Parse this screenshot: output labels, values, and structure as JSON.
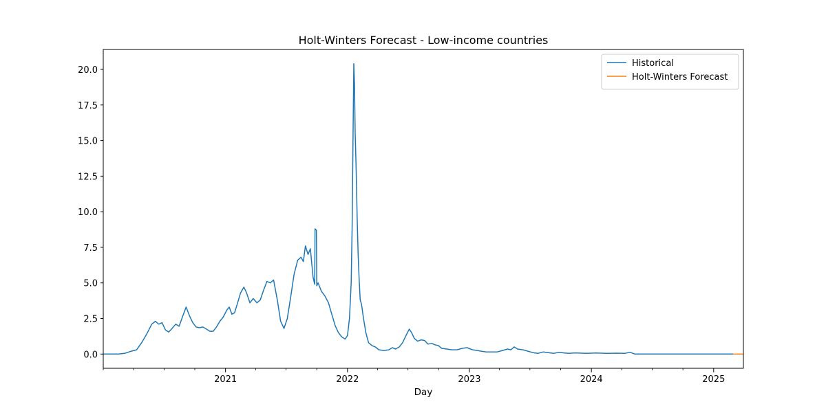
{
  "chart_data": {
    "type": "line",
    "title": "Holt-Winters Forecast - Low-income countries",
    "xlabel": "Day",
    "ylabel": "",
    "x_ticks": [
      "2021",
      "2022",
      "2023",
      "2024",
      "2025"
    ],
    "y_ticks": [
      "0.0",
      "2.5",
      "5.0",
      "7.5",
      "10.0",
      "12.5",
      "15.0",
      "17.5",
      "20.0"
    ],
    "xlim": [
      "2020-01-01",
      "2025-03-31"
    ],
    "ylim": [
      -1.0,
      21.4
    ],
    "legend_position": "top-right",
    "grid": false,
    "series": [
      {
        "name": "Historical",
        "color": "#1f77b4",
        "points": [
          [
            "2020-01-01",
            0.0
          ],
          [
            "2020-02-15",
            0.0
          ],
          [
            "2020-03-05",
            0.05
          ],
          [
            "2020-03-25",
            0.2
          ],
          [
            "2020-04-10",
            0.3
          ],
          [
            "2020-04-25",
            0.8
          ],
          [
            "2020-05-10",
            1.4
          ],
          [
            "2020-05-25",
            2.1
          ],
          [
            "2020-06-05",
            2.3
          ],
          [
            "2020-06-15",
            2.1
          ],
          [
            "2020-06-25",
            2.2
          ],
          [
            "2020-07-05",
            1.7
          ],
          [
            "2020-07-15",
            1.55
          ],
          [
            "2020-07-25",
            1.8
          ],
          [
            "2020-08-05",
            2.1
          ],
          [
            "2020-08-15",
            1.95
          ],
          [
            "2020-08-25",
            2.6
          ],
          [
            "2020-09-05",
            3.3
          ],
          [
            "2020-09-15",
            2.7
          ],
          [
            "2020-09-25",
            2.2
          ],
          [
            "2020-10-05",
            1.9
          ],
          [
            "2020-10-15",
            1.85
          ],
          [
            "2020-10-25",
            1.9
          ],
          [
            "2020-11-05",
            1.75
          ],
          [
            "2020-11-15",
            1.6
          ],
          [
            "2020-11-25",
            1.6
          ],
          [
            "2020-12-05",
            1.9
          ],
          [
            "2020-12-15",
            2.3
          ],
          [
            "2020-12-25",
            2.6
          ],
          [
            "2021-01-05",
            3.1
          ],
          [
            "2021-01-12",
            3.3
          ],
          [
            "2021-01-20",
            2.8
          ],
          [
            "2021-01-28",
            2.9
          ],
          [
            "2021-02-05",
            3.5
          ],
          [
            "2021-02-15",
            4.3
          ],
          [
            "2021-02-25",
            4.7
          ],
          [
            "2021-03-05",
            4.3
          ],
          [
            "2021-03-15",
            3.6
          ],
          [
            "2021-03-25",
            3.9
          ],
          [
            "2021-04-05",
            3.6
          ],
          [
            "2021-04-15",
            3.8
          ],
          [
            "2021-04-25",
            4.5
          ],
          [
            "2021-05-05",
            5.1
          ],
          [
            "2021-05-15",
            5.0
          ],
          [
            "2021-05-25",
            5.2
          ],
          [
            "2021-06-05",
            3.8
          ],
          [
            "2021-06-15",
            2.3
          ],
          [
            "2021-06-25",
            1.8
          ],
          [
            "2021-07-05",
            2.5
          ],
          [
            "2021-07-15",
            4.0
          ],
          [
            "2021-07-25",
            5.6
          ],
          [
            "2021-08-05",
            6.6
          ],
          [
            "2021-08-15",
            6.8
          ],
          [
            "2021-08-22",
            6.5
          ],
          [
            "2021-08-28",
            7.6
          ],
          [
            "2021-09-05",
            7.0
          ],
          [
            "2021-09-12",
            7.4
          ],
          [
            "2021-09-20",
            5.4
          ],
          [
            "2021-09-25",
            4.9
          ],
          [
            "2021-09-26",
            8.8
          ],
          [
            "2021-09-30",
            8.7
          ],
          [
            "2021-10-01",
            4.8
          ],
          [
            "2021-10-05",
            5.0
          ],
          [
            "2021-10-15",
            4.4
          ],
          [
            "2021-10-25",
            4.1
          ],
          [
            "2021-11-05",
            3.6
          ],
          [
            "2021-11-15",
            2.8
          ],
          [
            "2021-11-25",
            2.0
          ],
          [
            "2021-12-05",
            1.5
          ],
          [
            "2021-12-15",
            1.2
          ],
          [
            "2021-12-25",
            1.05
          ],
          [
            "2022-01-01",
            1.3
          ],
          [
            "2022-01-07",
            2.5
          ],
          [
            "2022-01-12",
            5.0
          ],
          [
            "2022-01-15",
            9.0
          ],
          [
            "2022-01-17",
            14.0
          ],
          [
            "2022-01-19",
            18.5
          ],
          [
            "2022-01-20",
            20.4
          ],
          [
            "2022-01-22",
            19.0
          ],
          [
            "2022-01-24",
            15.5
          ],
          [
            "2022-01-27",
            13.0
          ],
          [
            "2022-01-30",
            9.5
          ],
          [
            "2022-02-02",
            7.0
          ],
          [
            "2022-02-05",
            5.2
          ],
          [
            "2022-02-08",
            3.8
          ],
          [
            "2022-02-12",
            3.5
          ],
          [
            "2022-02-18",
            2.5
          ],
          [
            "2022-02-25",
            1.5
          ],
          [
            "2022-03-05",
            0.8
          ],
          [
            "2022-03-15",
            0.6
          ],
          [
            "2022-03-25",
            0.5
          ],
          [
            "2022-04-05",
            0.3
          ],
          [
            "2022-04-20",
            0.25
          ],
          [
            "2022-05-05",
            0.3
          ],
          [
            "2022-05-15",
            0.45
          ],
          [
            "2022-05-25",
            0.35
          ],
          [
            "2022-06-05",
            0.5
          ],
          [
            "2022-06-15",
            0.8
          ],
          [
            "2022-06-25",
            1.3
          ],
          [
            "2022-07-05",
            1.75
          ],
          [
            "2022-07-12",
            1.5
          ],
          [
            "2022-07-20",
            1.1
          ],
          [
            "2022-07-30",
            0.9
          ],
          [
            "2022-08-10",
            1.0
          ],
          [
            "2022-08-20",
            0.95
          ],
          [
            "2022-08-30",
            0.7
          ],
          [
            "2022-09-10",
            0.75
          ],
          [
            "2022-09-20",
            0.65
          ],
          [
            "2022-09-30",
            0.6
          ],
          [
            "2022-10-10",
            0.4
          ],
          [
            "2022-10-25",
            0.35
          ],
          [
            "2022-11-10",
            0.3
          ],
          [
            "2022-11-25",
            0.3
          ],
          [
            "2022-12-10",
            0.4
          ],
          [
            "2022-12-25",
            0.45
          ],
          [
            "2023-01-10",
            0.3
          ],
          [
            "2023-01-25",
            0.25
          ],
          [
            "2023-02-05",
            0.2
          ],
          [
            "2023-02-20",
            0.15
          ],
          [
            "2023-03-10",
            0.15
          ],
          [
            "2023-03-25",
            0.15
          ],
          [
            "2023-04-10",
            0.25
          ],
          [
            "2023-04-25",
            0.35
          ],
          [
            "2023-05-05",
            0.3
          ],
          [
            "2023-05-15",
            0.5
          ],
          [
            "2023-05-25",
            0.35
          ],
          [
            "2023-06-10",
            0.3
          ],
          [
            "2023-06-25",
            0.2
          ],
          [
            "2023-07-10",
            0.1
          ],
          [
            "2023-07-25",
            0.05
          ],
          [
            "2023-08-10",
            0.15
          ],
          [
            "2023-08-25",
            0.1
          ],
          [
            "2023-09-10",
            0.05
          ],
          [
            "2023-09-25",
            0.12
          ],
          [
            "2023-10-10",
            0.08
          ],
          [
            "2023-10-25",
            0.05
          ],
          [
            "2023-11-15",
            0.08
          ],
          [
            "2023-12-15",
            0.05
          ],
          [
            "2024-01-15",
            0.07
          ],
          [
            "2024-02-15",
            0.05
          ],
          [
            "2024-03-15",
            0.06
          ],
          [
            "2024-04-10",
            0.05
          ],
          [
            "2024-04-25",
            0.12
          ],
          [
            "2024-05-05",
            0.05
          ],
          [
            "2024-05-10",
            0.0
          ],
          [
            "2024-06-15",
            0.0
          ],
          [
            "2024-08-01",
            0.0
          ],
          [
            "2024-10-01",
            0.0
          ],
          [
            "2024-12-01",
            0.0
          ],
          [
            "2025-01-15",
            0.0
          ],
          [
            "2025-02-28",
            0.0
          ]
        ]
      },
      {
        "name": "Holt-Winters Forecast",
        "color": "#ff7f0e",
        "points": [
          [
            "2025-02-28",
            0.0
          ],
          [
            "2025-03-31",
            0.0
          ]
        ]
      }
    ]
  }
}
